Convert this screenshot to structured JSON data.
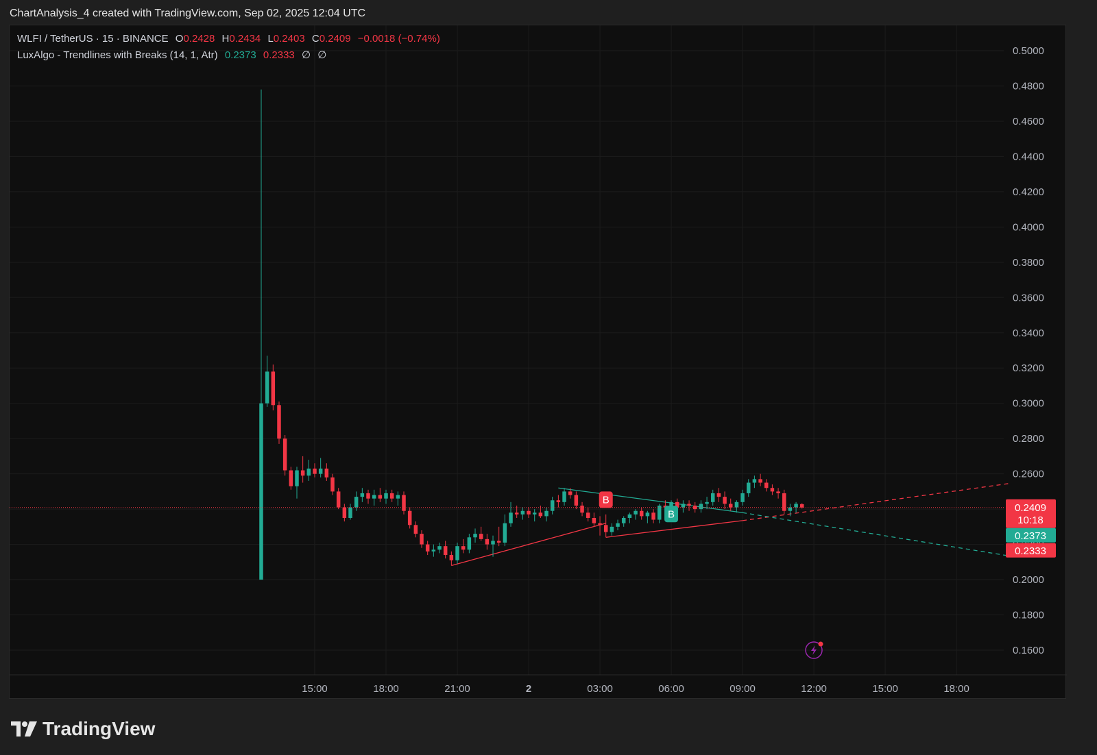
{
  "header": {
    "title": "ChartAnalysis_4 created with TradingView.com, Sep 02, 2025 12:04 UTC"
  },
  "legend": {
    "symbol": "WLFI / TetherUS · 15 · BINANCE",
    "o_label": "O",
    "o_value": "0.2428",
    "h_label": "H",
    "h_value": "0.2434",
    "l_label": "L",
    "l_value": "0.2403",
    "c_label": "C",
    "c_value": "0.2409",
    "change": "−0.0018 (−0.74%)",
    "indicator": "LuxAlgo - Trendlines with Breaks (14, 1, Atr)",
    "ind_value_1": "0.2373",
    "ind_value_2": "0.2333",
    "ind_icon_1": "∅",
    "ind_icon_2": "∅"
  },
  "footer": {
    "brand": "TradingView"
  },
  "colors": {
    "up": "#22ab94",
    "down": "#f23645",
    "background": "#0f0f0f",
    "grid": "#1e1e1e",
    "text": "#d1d4dc"
  },
  "chart_data": {
    "type": "candlestick",
    "timeframe": "15",
    "ylim": [
      0.15,
      0.51
    ],
    "y_ticks": [
      "0.5000",
      "0.4800",
      "0.4600",
      "0.4400",
      "0.4200",
      "0.4000",
      "0.3800",
      "0.3600",
      "0.3400",
      "0.3200",
      "0.3000",
      "0.2800",
      "0.2600",
      "0.2400",
      "0.2200",
      "0.2000",
      "0.1800",
      "0.1600"
    ],
    "x_ticks": [
      {
        "label": "15:00",
        "hour": 15,
        "bold": false
      },
      {
        "label": "18:00",
        "hour": 18,
        "bold": false
      },
      {
        "label": "21:00",
        "hour": 21,
        "bold": false
      },
      {
        "label": "2",
        "hour": 24,
        "bold": true
      },
      {
        "label": "03:00",
        "hour": 27,
        "bold": false
      },
      {
        "label": "06:00",
        "hour": 30,
        "bold": false
      },
      {
        "label": "09:00",
        "hour": 33,
        "bold": false
      },
      {
        "label": "12:00",
        "hour": 36,
        "bold": false
      },
      {
        "label": "15:00",
        "hour": 39,
        "bold": false
      },
      {
        "label": "18:00",
        "hour": 42,
        "bold": false
      }
    ],
    "x_range_hours": [
      2.05,
      44.2
    ],
    "current_price": {
      "value": 0.2409,
      "label": "0.2409",
      "countdown": "10:18"
    },
    "price_tags": [
      {
        "value": 0.2373,
        "label": "0.2373",
        "color": "#22ab94"
      },
      {
        "value": 0.2333,
        "label": "0.2333",
        "color": "#f23645"
      }
    ],
    "candles": [
      {
        "t": 12.75,
        "o": 0.2,
        "h": 0.478,
        "l": 0.2,
        "c": 0.3
      },
      {
        "t": 13.0,
        "o": 0.3,
        "h": 0.327,
        "l": 0.298,
        "c": 0.318
      },
      {
        "t": 13.25,
        "o": 0.318,
        "h": 0.322,
        "l": 0.296,
        "c": 0.299
      },
      {
        "t": 13.5,
        "o": 0.299,
        "h": 0.301,
        "l": 0.277,
        "c": 0.28
      },
      {
        "t": 13.75,
        "o": 0.28,
        "h": 0.282,
        "l": 0.259,
        "c": 0.262
      },
      {
        "t": 14.0,
        "o": 0.262,
        "h": 0.264,
        "l": 0.251,
        "c": 0.253
      },
      {
        "t": 14.25,
        "o": 0.253,
        "h": 0.264,
        "l": 0.246,
        "c": 0.262
      },
      {
        "t": 14.5,
        "o": 0.262,
        "h": 0.27,
        "l": 0.255,
        "c": 0.259
      },
      {
        "t": 14.75,
        "o": 0.259,
        "h": 0.268,
        "l": 0.256,
        "c": 0.263
      },
      {
        "t": 15.0,
        "o": 0.263,
        "h": 0.266,
        "l": 0.258,
        "c": 0.26
      },
      {
        "t": 15.25,
        "o": 0.26,
        "h": 0.269,
        "l": 0.258,
        "c": 0.263
      },
      {
        "t": 15.5,
        "o": 0.263,
        "h": 0.266,
        "l": 0.256,
        "c": 0.258
      },
      {
        "t": 15.75,
        "o": 0.258,
        "h": 0.26,
        "l": 0.248,
        "c": 0.25
      },
      {
        "t": 16.0,
        "o": 0.25,
        "h": 0.252,
        "l": 0.24,
        "c": 0.241
      },
      {
        "t": 16.25,
        "o": 0.241,
        "h": 0.243,
        "l": 0.233,
        "c": 0.235
      },
      {
        "t": 16.5,
        "o": 0.235,
        "h": 0.243,
        "l": 0.234,
        "c": 0.241
      },
      {
        "t": 16.75,
        "o": 0.241,
        "h": 0.25,
        "l": 0.239,
        "c": 0.247
      },
      {
        "t": 17.0,
        "o": 0.247,
        "h": 0.252,
        "l": 0.244,
        "c": 0.249
      },
      {
        "t": 17.25,
        "o": 0.249,
        "h": 0.251,
        "l": 0.243,
        "c": 0.246
      },
      {
        "t": 17.5,
        "o": 0.246,
        "h": 0.251,
        "l": 0.242,
        "c": 0.248
      },
      {
        "t": 17.75,
        "o": 0.248,
        "h": 0.252,
        "l": 0.244,
        "c": 0.246
      },
      {
        "t": 18.0,
        "o": 0.246,
        "h": 0.251,
        "l": 0.243,
        "c": 0.249
      },
      {
        "t": 18.25,
        "o": 0.249,
        "h": 0.251,
        "l": 0.244,
        "c": 0.246
      },
      {
        "t": 18.5,
        "o": 0.246,
        "h": 0.25,
        "l": 0.242,
        "c": 0.248
      },
      {
        "t": 18.75,
        "o": 0.248,
        "h": 0.25,
        "l": 0.237,
        "c": 0.239
      },
      {
        "t": 19.0,
        "o": 0.239,
        "h": 0.241,
        "l": 0.229,
        "c": 0.231
      },
      {
        "t": 19.25,
        "o": 0.231,
        "h": 0.233,
        "l": 0.224,
        "c": 0.226
      },
      {
        "t": 19.5,
        "o": 0.226,
        "h": 0.228,
        "l": 0.218,
        "c": 0.22
      },
      {
        "t": 19.75,
        "o": 0.22,
        "h": 0.222,
        "l": 0.214,
        "c": 0.216
      },
      {
        "t": 20.0,
        "o": 0.216,
        "h": 0.22,
        "l": 0.213,
        "c": 0.217
      },
      {
        "t": 20.25,
        "o": 0.217,
        "h": 0.221,
        "l": 0.215,
        "c": 0.219
      },
      {
        "t": 20.5,
        "o": 0.219,
        "h": 0.222,
        "l": 0.212,
        "c": 0.214
      },
      {
        "t": 20.75,
        "o": 0.214,
        "h": 0.216,
        "l": 0.208,
        "c": 0.211
      },
      {
        "t": 21.0,
        "o": 0.211,
        "h": 0.221,
        "l": 0.209,
        "c": 0.219
      },
      {
        "t": 21.25,
        "o": 0.219,
        "h": 0.223,
        "l": 0.215,
        "c": 0.217
      },
      {
        "t": 21.5,
        "o": 0.217,
        "h": 0.226,
        "l": 0.215,
        "c": 0.224
      },
      {
        "t": 21.75,
        "o": 0.224,
        "h": 0.229,
        "l": 0.221,
        "c": 0.226
      },
      {
        "t": 22.0,
        "o": 0.226,
        "h": 0.23,
        "l": 0.222,
        "c": 0.223
      },
      {
        "t": 22.25,
        "o": 0.223,
        "h": 0.226,
        "l": 0.217,
        "c": 0.22
      },
      {
        "t": 22.5,
        "o": 0.22,
        "h": 0.225,
        "l": 0.213,
        "c": 0.222
      },
      {
        "t": 22.75,
        "o": 0.222,
        "h": 0.23,
        "l": 0.219,
        "c": 0.221
      },
      {
        "t": 23.0,
        "o": 0.221,
        "h": 0.237,
        "l": 0.219,
        "c": 0.232
      },
      {
        "t": 23.25,
        "o": 0.232,
        "h": 0.244,
        "l": 0.23,
        "c": 0.238
      },
      {
        "t": 23.5,
        "o": 0.238,
        "h": 0.242,
        "l": 0.235,
        "c": 0.237
      },
      {
        "t": 23.75,
        "o": 0.237,
        "h": 0.241,
        "l": 0.234,
        "c": 0.239
      },
      {
        "t": 24.0,
        "o": 0.239,
        "h": 0.241,
        "l": 0.235,
        "c": 0.237
      },
      {
        "t": 24.25,
        "o": 0.237,
        "h": 0.24,
        "l": 0.233,
        "c": 0.238
      },
      {
        "t": 24.5,
        "o": 0.238,
        "h": 0.242,
        "l": 0.235,
        "c": 0.236
      },
      {
        "t": 24.75,
        "o": 0.236,
        "h": 0.241,
        "l": 0.233,
        "c": 0.239
      },
      {
        "t": 25.0,
        "o": 0.239,
        "h": 0.247,
        "l": 0.237,
        "c": 0.245
      },
      {
        "t": 25.25,
        "o": 0.245,
        "h": 0.248,
        "l": 0.241,
        "c": 0.244
      },
      {
        "t": 25.5,
        "o": 0.244,
        "h": 0.252,
        "l": 0.242,
        "c": 0.25
      },
      {
        "t": 25.75,
        "o": 0.25,
        "h": 0.252,
        "l": 0.246,
        "c": 0.248
      },
      {
        "t": 26.0,
        "o": 0.248,
        "h": 0.25,
        "l": 0.24,
        "c": 0.242
      },
      {
        "t": 26.25,
        "o": 0.242,
        "h": 0.244,
        "l": 0.236,
        "c": 0.238
      },
      {
        "t": 26.5,
        "o": 0.238,
        "h": 0.241,
        "l": 0.233,
        "c": 0.235
      },
      {
        "t": 26.75,
        "o": 0.235,
        "h": 0.238,
        "l": 0.23,
        "c": 0.232
      },
      {
        "t": 27.0,
        "o": 0.232,
        "h": 0.236,
        "l": 0.225,
        "c": 0.231
      },
      {
        "t": 27.25,
        "o": 0.231,
        "h": 0.237,
        "l": 0.224,
        "c": 0.227
      },
      {
        "t": 27.5,
        "o": 0.227,
        "h": 0.232,
        "l": 0.225,
        "c": 0.23
      },
      {
        "t": 27.75,
        "o": 0.23,
        "h": 0.234,
        "l": 0.228,
        "c": 0.232
      },
      {
        "t": 28.0,
        "o": 0.232,
        "h": 0.236,
        "l": 0.23,
        "c": 0.235
      },
      {
        "t": 28.25,
        "o": 0.235,
        "h": 0.238,
        "l": 0.232,
        "c": 0.237
      },
      {
        "t": 28.5,
        "o": 0.237,
        "h": 0.24,
        "l": 0.234,
        "c": 0.239
      },
      {
        "t": 28.75,
        "o": 0.239,
        "h": 0.241,
        "l": 0.234,
        "c": 0.236
      },
      {
        "t": 29.0,
        "o": 0.236,
        "h": 0.239,
        "l": 0.232,
        "c": 0.238
      },
      {
        "t": 29.25,
        "o": 0.238,
        "h": 0.24,
        "l": 0.232,
        "c": 0.234
      },
      {
        "t": 29.5,
        "o": 0.234,
        "h": 0.243,
        "l": 0.232,
        "c": 0.242
      },
      {
        "t": 29.75,
        "o": 0.242,
        "h": 0.245,
        "l": 0.238,
        "c": 0.241
      },
      {
        "t": 30.0,
        "o": 0.241,
        "h": 0.245,
        "l": 0.237,
        "c": 0.244
      },
      {
        "t": 30.25,
        "o": 0.244,
        "h": 0.246,
        "l": 0.239,
        "c": 0.241
      },
      {
        "t": 30.5,
        "o": 0.241,
        "h": 0.245,
        "l": 0.238,
        "c": 0.243
      },
      {
        "t": 30.75,
        "o": 0.243,
        "h": 0.245,
        "l": 0.239,
        "c": 0.242
      },
      {
        "t": 31.0,
        "o": 0.242,
        "h": 0.244,
        "l": 0.238,
        "c": 0.24
      },
      {
        "t": 31.25,
        "o": 0.24,
        "h": 0.245,
        "l": 0.238,
        "c": 0.243
      },
      {
        "t": 31.5,
        "o": 0.243,
        "h": 0.247,
        "l": 0.24,
        "c": 0.244
      },
      {
        "t": 31.75,
        "o": 0.244,
        "h": 0.251,
        "l": 0.242,
        "c": 0.249
      },
      {
        "t": 32.0,
        "o": 0.249,
        "h": 0.252,
        "l": 0.244,
        "c": 0.247
      },
      {
        "t": 32.25,
        "o": 0.247,
        "h": 0.25,
        "l": 0.24,
        "c": 0.243
      },
      {
        "t": 32.5,
        "o": 0.243,
        "h": 0.246,
        "l": 0.239,
        "c": 0.241
      },
      {
        "t": 32.75,
        "o": 0.241,
        "h": 0.245,
        "l": 0.238,
        "c": 0.244
      },
      {
        "t": 33.0,
        "o": 0.244,
        "h": 0.251,
        "l": 0.242,
        "c": 0.249
      },
      {
        "t": 33.25,
        "o": 0.249,
        "h": 0.257,
        "l": 0.247,
        "c": 0.255
      },
      {
        "t": 33.5,
        "o": 0.255,
        "h": 0.259,
        "l": 0.252,
        "c": 0.257
      },
      {
        "t": 33.75,
        "o": 0.257,
        "h": 0.26,
        "l": 0.253,
        "c": 0.255
      },
      {
        "t": 34.0,
        "o": 0.255,
        "h": 0.257,
        "l": 0.25,
        "c": 0.252
      },
      {
        "t": 34.25,
        "o": 0.252,
        "h": 0.254,
        "l": 0.248,
        "c": 0.25
      },
      {
        "t": 34.5,
        "o": 0.25,
        "h": 0.252,
        "l": 0.246,
        "c": 0.249
      },
      {
        "t": 34.75,
        "o": 0.249,
        "h": 0.251,
        "l": 0.237,
        "c": 0.239
      },
      {
        "t": 35.0,
        "o": 0.239,
        "h": 0.243,
        "l": 0.236,
        "c": 0.241
      },
      {
        "t": 35.25,
        "o": 0.241,
        "h": 0.244,
        "l": 0.238,
        "c": 0.243
      },
      {
        "t": 35.5,
        "o": 0.2428,
        "h": 0.2434,
        "l": 0.2403,
        "c": 0.2409
      }
    ],
    "trendlines": [
      {
        "name": "support-1",
        "color": "#f23645",
        "dashed": false,
        "x1": 20.75,
        "y1": 0.208,
        "x2": 27.25,
        "y2": 0.232
      },
      {
        "name": "resistance-1",
        "color": "#22ab94",
        "dashed": false,
        "x1": 25.25,
        "y1": 0.252,
        "x2": 30.0,
        "y2": 0.2435
      },
      {
        "name": "support-2",
        "color": "#f23645",
        "dashed": false,
        "x1": 27.25,
        "y1": 0.224,
        "x2": 33.0,
        "y2": 0.2335
      },
      {
        "name": "resistance-2",
        "color": "#22ab94",
        "dashed": false,
        "x1": 30.0,
        "y1": 0.2435,
        "x2": 33.0,
        "y2": 0.238
      },
      {
        "name": "support-proj",
        "color": "#f23645",
        "dashed": true,
        "x1": 33.0,
        "y1": 0.2335,
        "x2": 44.2,
        "y2": 0.2545
      },
      {
        "name": "resistance-proj",
        "color": "#22ab94",
        "dashed": true,
        "x1": 33.0,
        "y1": 0.238,
        "x2": 44.2,
        "y2": 0.2135
      }
    ],
    "break_labels": [
      {
        "t": 27.25,
        "price": 0.236,
        "text": "B",
        "color": "#f23645",
        "position": "above"
      },
      {
        "t": 30.0,
        "price": 0.238,
        "text": "B",
        "color": "#22ab94",
        "position": "below"
      }
    ]
  }
}
